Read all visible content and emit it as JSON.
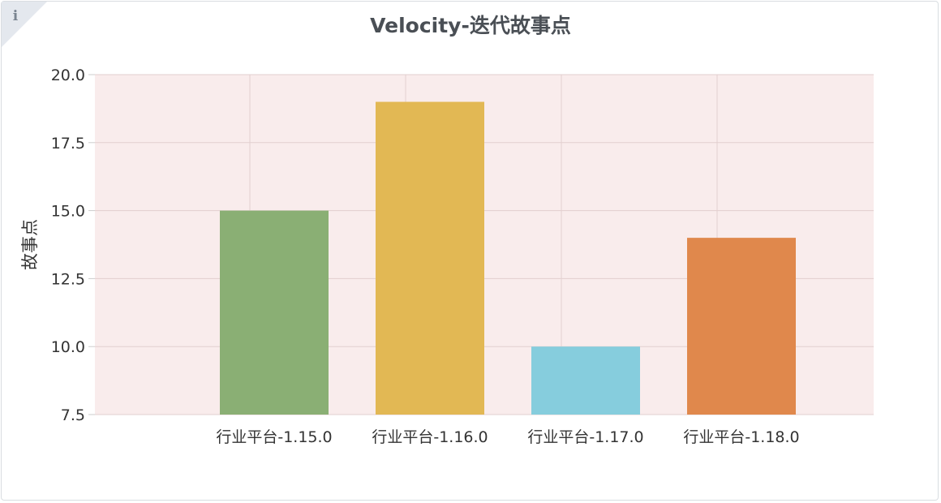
{
  "info_icon": "info-icon",
  "chart_data": {
    "type": "bar",
    "title": "Velocity-迭代故事点",
    "xlabel": "",
    "ylabel": "故事点",
    "categories": [
      "行业平台-1.15.0",
      "行业平台-1.16.0",
      "行业平台-1.17.0",
      "行业平台-1.18.0"
    ],
    "values": [
      15,
      19,
      10,
      14
    ],
    "colors": [
      "#8aaf74",
      "#e2b854",
      "#86cddd",
      "#e0884c"
    ],
    "ylim": [
      7.5,
      20
    ],
    "yticks": [
      "7.5",
      "10.0",
      "12.5",
      "15.0",
      "17.5",
      "20.0"
    ],
    "grid": true,
    "plot_background": "#f9ecec",
    "legend": "none"
  }
}
